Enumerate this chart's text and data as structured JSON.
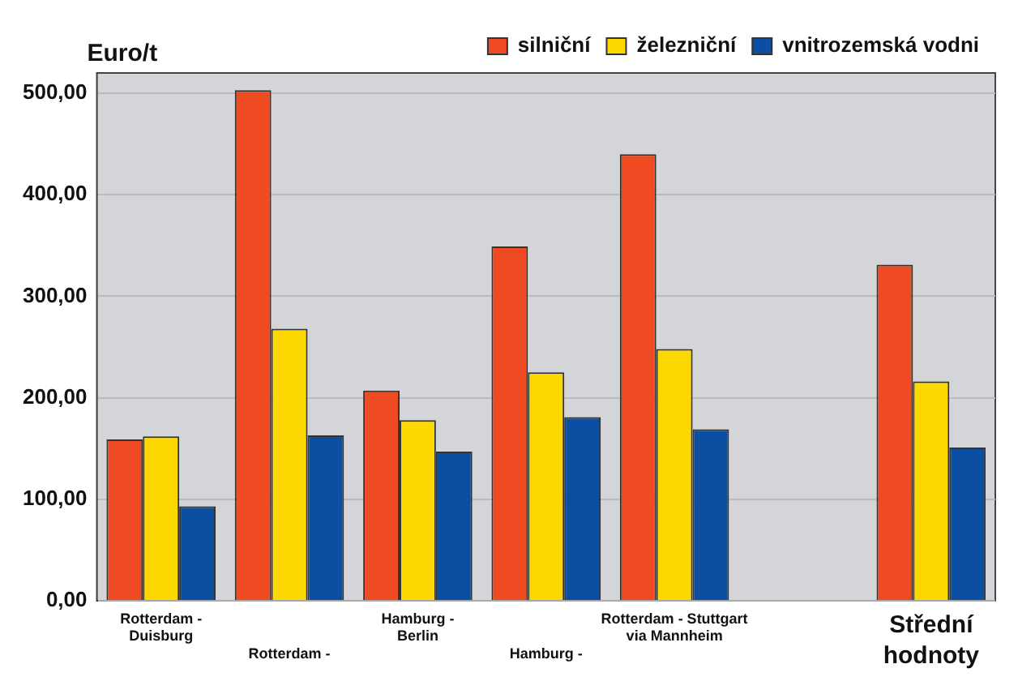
{
  "chart_data": {
    "type": "bar",
    "ylabel": "Euro/t",
    "categories": [
      "Rotterdam -\nDuisburg",
      "Rotterdam -",
      "Hamburg -\nBerlin",
      "Hamburg -",
      "Rotterdam - Stuttgart\nvia Mannheim",
      null,
      "Střední\nhodnoty"
    ],
    "series": [
      {
        "name": "silniční",
        "color": "#ee4b22",
        "values": [
          159,
          503,
          207,
          349,
          440,
          null,
          331
        ]
      },
      {
        "name": "železniční",
        "color": "#fdd800",
        "values": [
          162,
          268,
          178,
          225,
          248,
          null,
          216
        ]
      },
      {
        "name": "vnitrozemská vodni",
        "color": "#0b4ea2",
        "values": [
          93,
          163,
          147,
          181,
          169,
          null,
          151
        ]
      }
    ],
    "ylim": [
      0,
      520
    ],
    "yticks": [
      {
        "value": 0,
        "label": "0,00"
      },
      {
        "value": 100,
        "label": "100,00"
      },
      {
        "value": 200,
        "label": "200,00"
      },
      {
        "value": 300,
        "label": "300,00"
      },
      {
        "value": 400,
        "label": "400,00"
      },
      {
        "value": 500,
        "label": "500,00"
      }
    ],
    "grid": "y",
    "legend": "top right"
  }
}
